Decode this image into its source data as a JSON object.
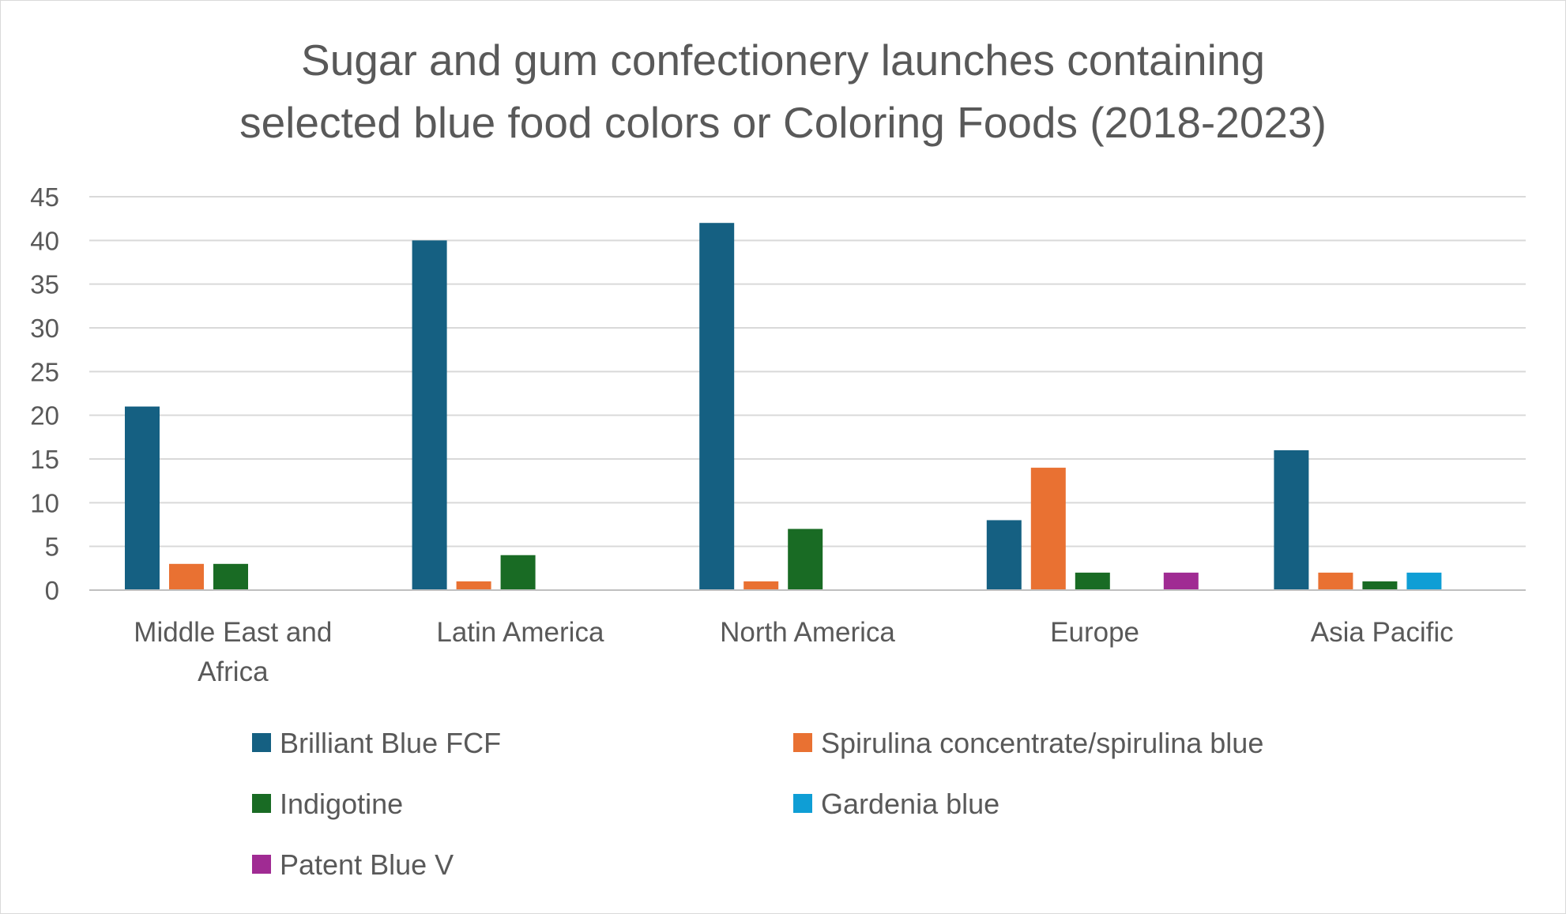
{
  "chart_data": {
    "type": "bar",
    "title": "Sugar and gum confectionery launches containing selected blue food colors or Coloring Foods (2018-2023)",
    "title_lines": [
      "Sugar and gum confectionery launches containing",
      "selected blue food colors or Coloring Foods (2018-2023)"
    ],
    "categories": [
      "Middle East and Africa",
      "Latin America",
      "North America",
      "Europe",
      "Asia Pacific"
    ],
    "category_label_lines": [
      [
        "Middle East and",
        "Africa"
      ],
      [
        "Latin America"
      ],
      [
        "North America"
      ],
      [
        "Europe"
      ],
      [
        "Asia Pacific"
      ]
    ],
    "series": [
      {
        "name": "Brilliant Blue FCF",
        "color": "#156082",
        "values": [
          21,
          40,
          42,
          8,
          16
        ]
      },
      {
        "name": "Spirulina concentrate/spirulina blue",
        "color": "#E97132",
        "values": [
          3,
          1,
          1,
          14,
          2
        ]
      },
      {
        "name": "Indigotine",
        "color": "#196B24",
        "values": [
          3,
          4,
          7,
          2,
          1
        ]
      },
      {
        "name": "Gardenia blue",
        "color": "#0F9ED5",
        "values": [
          0,
          0,
          0,
          0,
          2
        ]
      },
      {
        "name": "Patent Blue V",
        "color": "#A02B93",
        "values": [
          0,
          0,
          0,
          2,
          0
        ]
      }
    ],
    "xlabel": "",
    "ylabel": "",
    "ylim": [
      0,
      45
    ],
    "yticks": [
      "0",
      "5",
      "10",
      "15",
      "20",
      "25",
      "30",
      "35",
      "40",
      "45"
    ],
    "grid": true,
    "legend_position": "bottom"
  }
}
